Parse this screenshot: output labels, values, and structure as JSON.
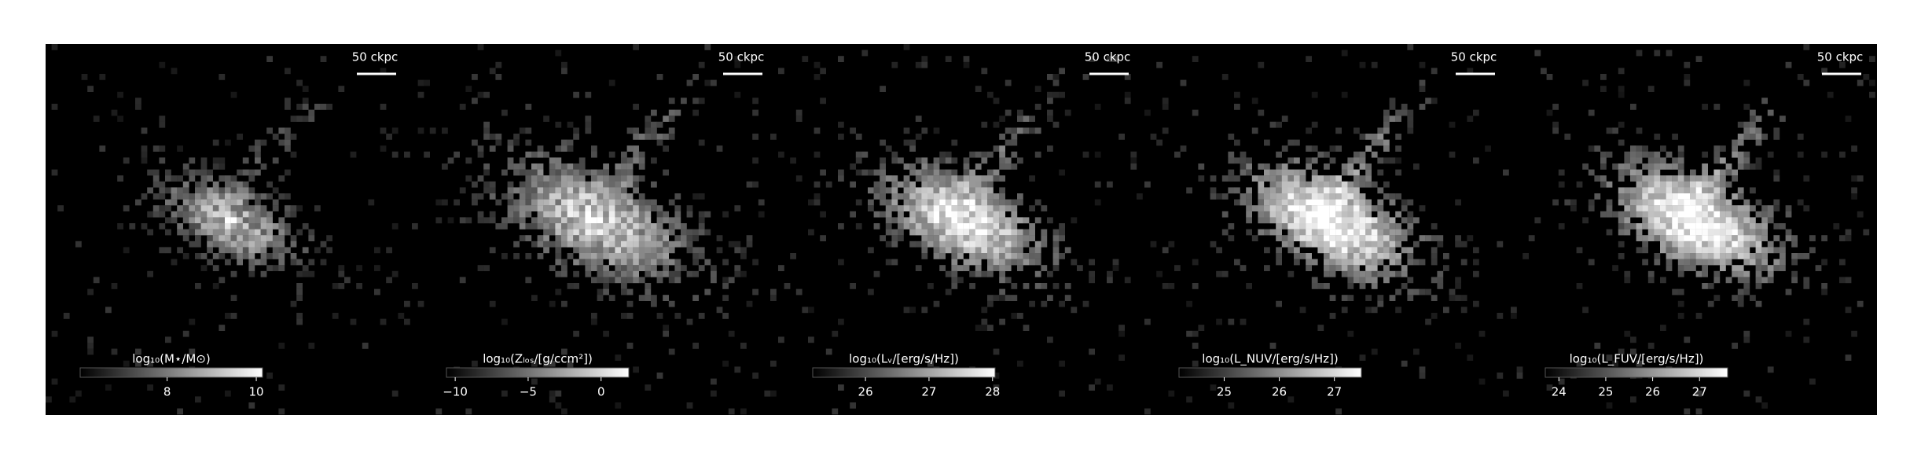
{
  "chart_data": [
    {
      "type": "image",
      "scalebar_label": "50 ckpc",
      "colorbar_label": "log₁₀(M⋆/M⊙)",
      "xlim": [
        6.05,
        10.14
      ],
      "xticks": [
        8,
        10
      ]
    },
    {
      "type": "image",
      "scalebar_label": "50 ckpc",
      "colorbar_label": "log₁₀(Zₗₒₛ/[g/ccm²])",
      "xlim": [
        -10.6,
        1.9
      ],
      "xticks": [
        {
          "value": -10,
          "label": "−10"
        },
        {
          "value": -5,
          "label": "−5"
        },
        0
      ]
    },
    {
      "type": "image",
      "scalebar_label": "50 ckpc",
      "colorbar_label": "log₁₀(Lᵥ/[erg/s/Hz])",
      "xlim": [
        25.17,
        28.04
      ],
      "xticks": [
        26,
        27,
        28
      ]
    },
    {
      "type": "image",
      "scalebar_label": "50 ckpc",
      "colorbar_label": "log₁₀(L_NUV/[erg/s/Hz])",
      "xlim": [
        24.18,
        27.49
      ],
      "xticks": [
        25,
        26,
        27
      ]
    },
    {
      "type": "image",
      "scalebar_label": "50 ckpc",
      "colorbar_label": "log₁₀(L_FUV/[erg/s/Hz])",
      "xlim": [
        23.71,
        27.6
      ],
      "xticks": [
        24,
        25,
        26,
        27
      ]
    }
  ]
}
